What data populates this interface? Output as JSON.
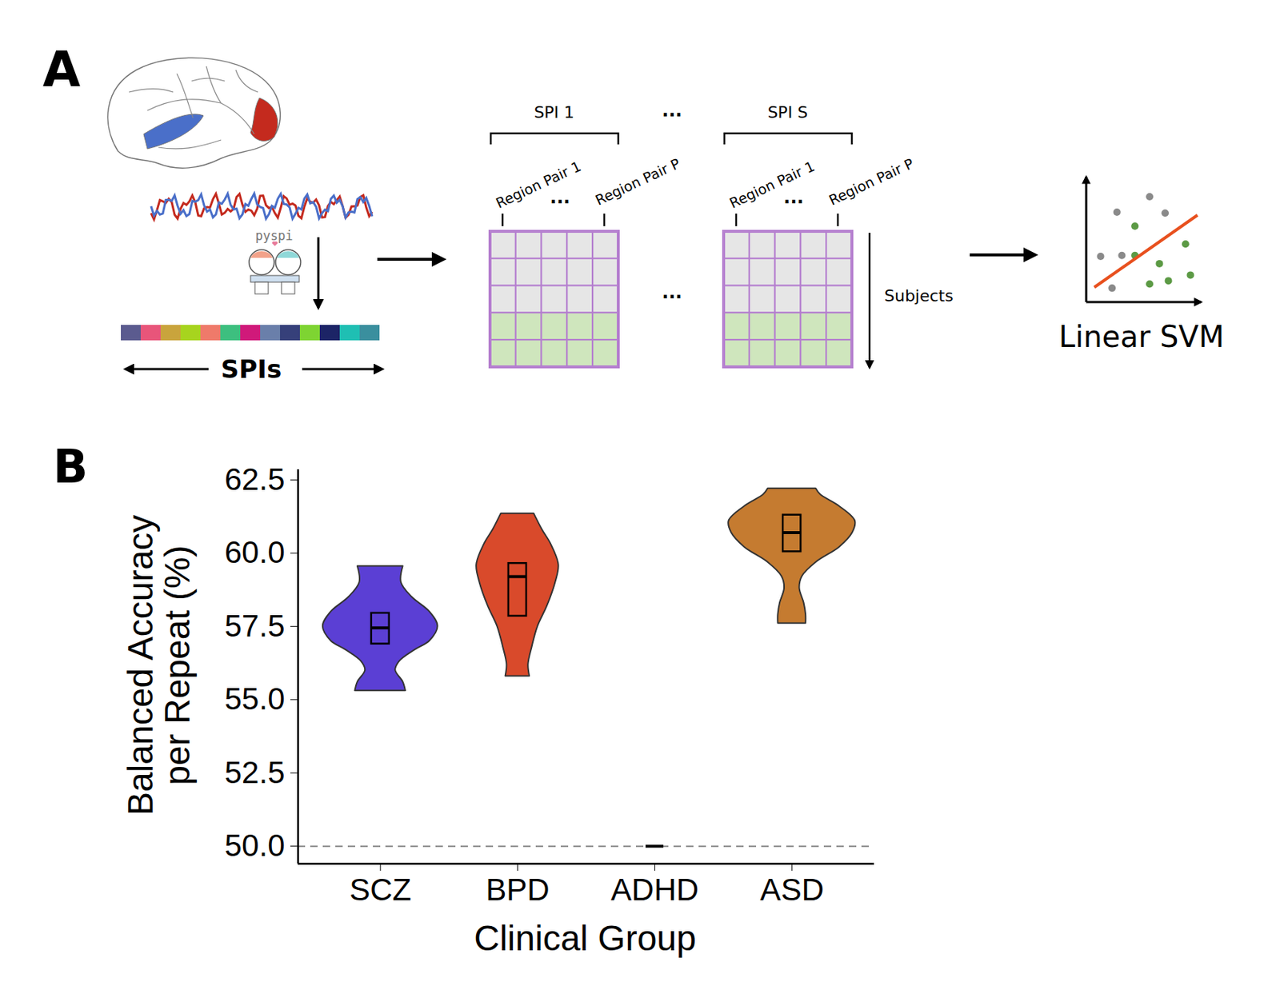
{
  "panel_labels": [
    "A",
    "B"
  ],
  "panel_a": {
    "package": "pyspi",
    "spi_strip_label": "SPIs",
    "matrices": [
      {
        "title": "SPI 1"
      },
      {
        "title": "SPI S"
      }
    ],
    "columns": [
      "Region Pair 1",
      "Region Pair P"
    ],
    "ellipsis": "...",
    "rows_label": "Subjects",
    "model": "Linear SVM"
  },
  "chart_data": {
    "type": "violin",
    "x_label": "Clinical Group",
    "y_label": "Balanced Accuracy\nper Repeat (%)",
    "categories": [
      "SCZ",
      "BPD",
      "ADHD",
      "ASD"
    ],
    "groups": [
      {
        "name": "SCZ",
        "color": "#5b3fd4",
        "violin": {
          "y": [
            55.3,
            55.6,
            56.0,
            56.3,
            56.7,
            57.0,
            57.5,
            58.0,
            58.5,
            59.0,
            59.55
          ],
          "density": [
            0.4,
            0.36,
            0.24,
            0.3,
            0.55,
            0.78,
            0.91,
            0.78,
            0.5,
            0.33,
            0.36
          ]
        },
        "box": {
          "q1": 56.9,
          "median": 57.45,
          "q3": 57.95
        }
      },
      {
        "name": "BPD",
        "color": "#d94a2b",
        "violin": {
          "y": [
            55.8,
            56.2,
            56.8,
            57.5,
            58.2,
            59.0,
            59.6,
            60.3,
            60.8,
            61.35
          ],
          "density": [
            0.19,
            0.17,
            0.23,
            0.32,
            0.47,
            0.6,
            0.65,
            0.53,
            0.39,
            0.26
          ]
        },
        "box": {
          "q1": 57.85,
          "median": 59.2,
          "q3": 59.65
        }
      },
      {
        "name": "ADHD",
        "violin": null,
        "box": {
          "q1": 50,
          "median": 50,
          "q3": 50
        }
      },
      {
        "name": "ASD",
        "color": "#c57b30",
        "violin": {
          "y": [
            57.6,
            57.9,
            58.3,
            58.8,
            59.2,
            59.7,
            60.2,
            60.7,
            61.1,
            61.6,
            62.0,
            62.2
          ],
          "density": [
            0.22,
            0.22,
            0.19,
            0.12,
            0.16,
            0.39,
            0.75,
            0.96,
            1.0,
            0.75,
            0.45,
            0.38
          ]
        },
        "box": {
          "q1": 60.05,
          "median": 60.7,
          "q3": 61.3
        }
      }
    ],
    "reference_line": 50,
    "ylim": [
      49.4,
      62.85
    ],
    "yticks": [
      {
        "value": 50,
        "label": "50.0"
      },
      52.5,
      {
        "value": 55,
        "label": "55.0"
      },
      57.5,
      {
        "value": 60,
        "label": "60.0"
      },
      62.5
    ],
    "grid": false
  }
}
